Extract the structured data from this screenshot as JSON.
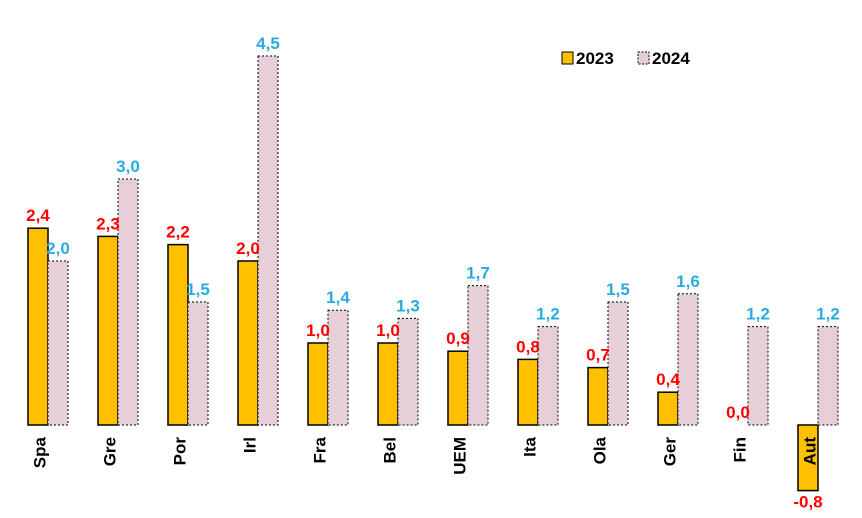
{
  "chart_data": {
    "type": "bar",
    "categories": [
      "Spa",
      "Gre",
      "Por",
      "Irl",
      "Fra",
      "Bel",
      "UEM",
      "Ita",
      "Ola",
      "Ger",
      "Fin",
      "Aut"
    ],
    "series": [
      {
        "name": "2023",
        "values": [
          2.4,
          2.3,
          2.2,
          2.0,
          1.0,
          1.0,
          0.9,
          0.8,
          0.7,
          0.4,
          0.0,
          -0.8
        ],
        "labels": [
          "2,4",
          "2,3",
          "2,2",
          "2,0",
          "1,0",
          "1,0",
          "0,9",
          "0,8",
          "0,7",
          "0,4",
          "0,0",
          "-0,8"
        ],
        "color": "#FFC000",
        "label_color": "#FF0000"
      },
      {
        "name": "2024",
        "values": [
          2.0,
          3.0,
          1.5,
          4.5,
          1.4,
          1.3,
          1.7,
          1.2,
          1.5,
          1.6,
          1.2,
          1.2
        ],
        "labels": [
          "2,0",
          "3,0",
          "1,5",
          "4,5",
          "1,4",
          "1,3",
          "1,7",
          "1,2",
          "1,5",
          "1,6",
          "1,2",
          "1,2"
        ],
        "color": "#E6CFD8",
        "label_color": "#29ABE2"
      }
    ],
    "title": "",
    "xlabel": "",
    "ylabel": "",
    "ylim": [
      -0.8,
      4.5
    ],
    "grid": false,
    "legend_position": "top-right"
  }
}
